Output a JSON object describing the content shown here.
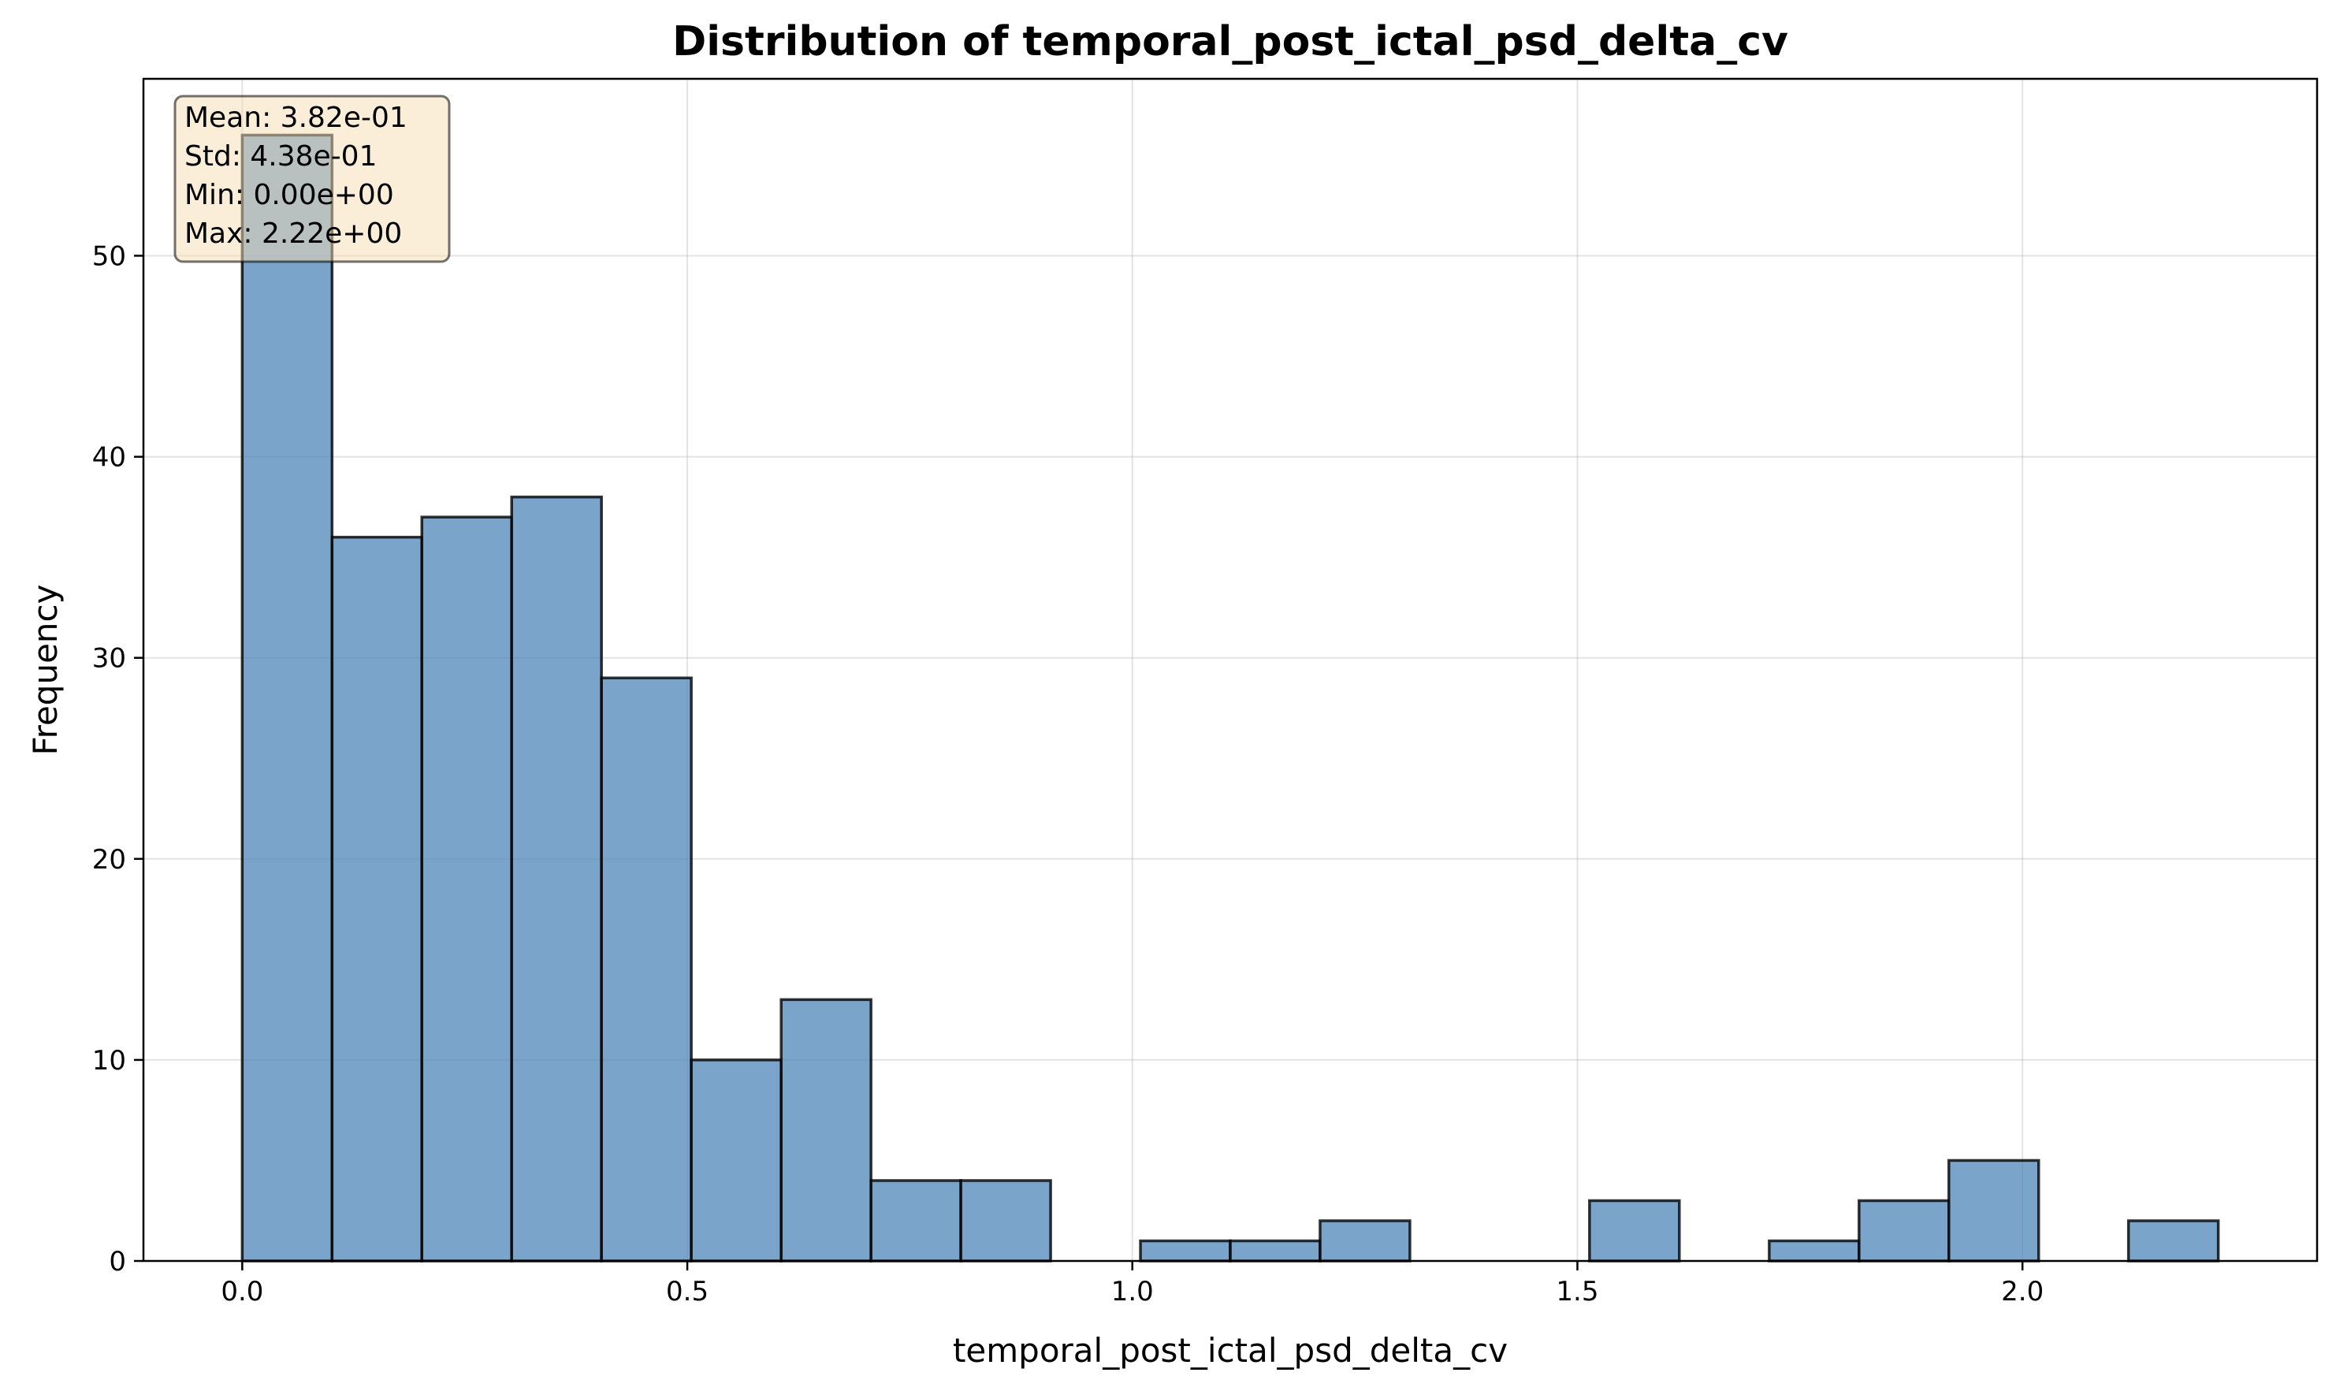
{
  "chart_data": {
    "type": "bar",
    "title": "Distribution of temporal_post_ictal_psd_delta_cv",
    "xlabel": "temporal_post_ictal_psd_delta_cv",
    "ylabel": "Frequency",
    "xlim": [
      -0.111,
      2.331
    ],
    "ylim": [
      0,
      58.8
    ],
    "grid": true,
    "bin_edges": [
      0.0,
      0.1009,
      0.2018,
      0.3027,
      0.4036,
      0.5045,
      0.6055,
      0.7064,
      0.8073,
      0.9082,
      1.0091,
      1.11,
      1.2109,
      1.3118,
      1.4127,
      1.5136,
      1.6145,
      1.7155,
      1.8164,
      1.9173,
      2.0182,
      2.1191,
      2.22
    ],
    "values": [
      56,
      36,
      37,
      38,
      29,
      10,
      13,
      4,
      4,
      0,
      1,
      1,
      2,
      0,
      0,
      3,
      0,
      1,
      3,
      5,
      0,
      2
    ],
    "x_ticks": [
      {
        "value": 0.0,
        "label": "0.0"
      },
      {
        "value": 0.5,
        "label": "0.5"
      },
      {
        "value": 1.0,
        "label": "1.0"
      },
      {
        "value": 1.5,
        "label": "1.5"
      },
      {
        "value": 2.0,
        "label": "2.0"
      }
    ],
    "y_ticks": [
      {
        "value": 0,
        "label": "0"
      },
      {
        "value": 10,
        "label": "10"
      },
      {
        "value": 20,
        "label": "20"
      },
      {
        "value": 30,
        "label": "30"
      },
      {
        "value": 40,
        "label": "40"
      },
      {
        "value": 50,
        "label": "50"
      }
    ],
    "stats_box": {
      "placement": "top-left",
      "lines": [
        "Mean: 3.82e-01",
        "Std: 4.38e-01",
        "Min: 0.00e+00",
        "Max: 2.22e+00"
      ]
    },
    "colors": {
      "bar_fill": "#4f86b9",
      "bar_edge": "#000000",
      "stats_box_fill": "#f5deb3",
      "stats_box_edge": "#000000"
    }
  }
}
